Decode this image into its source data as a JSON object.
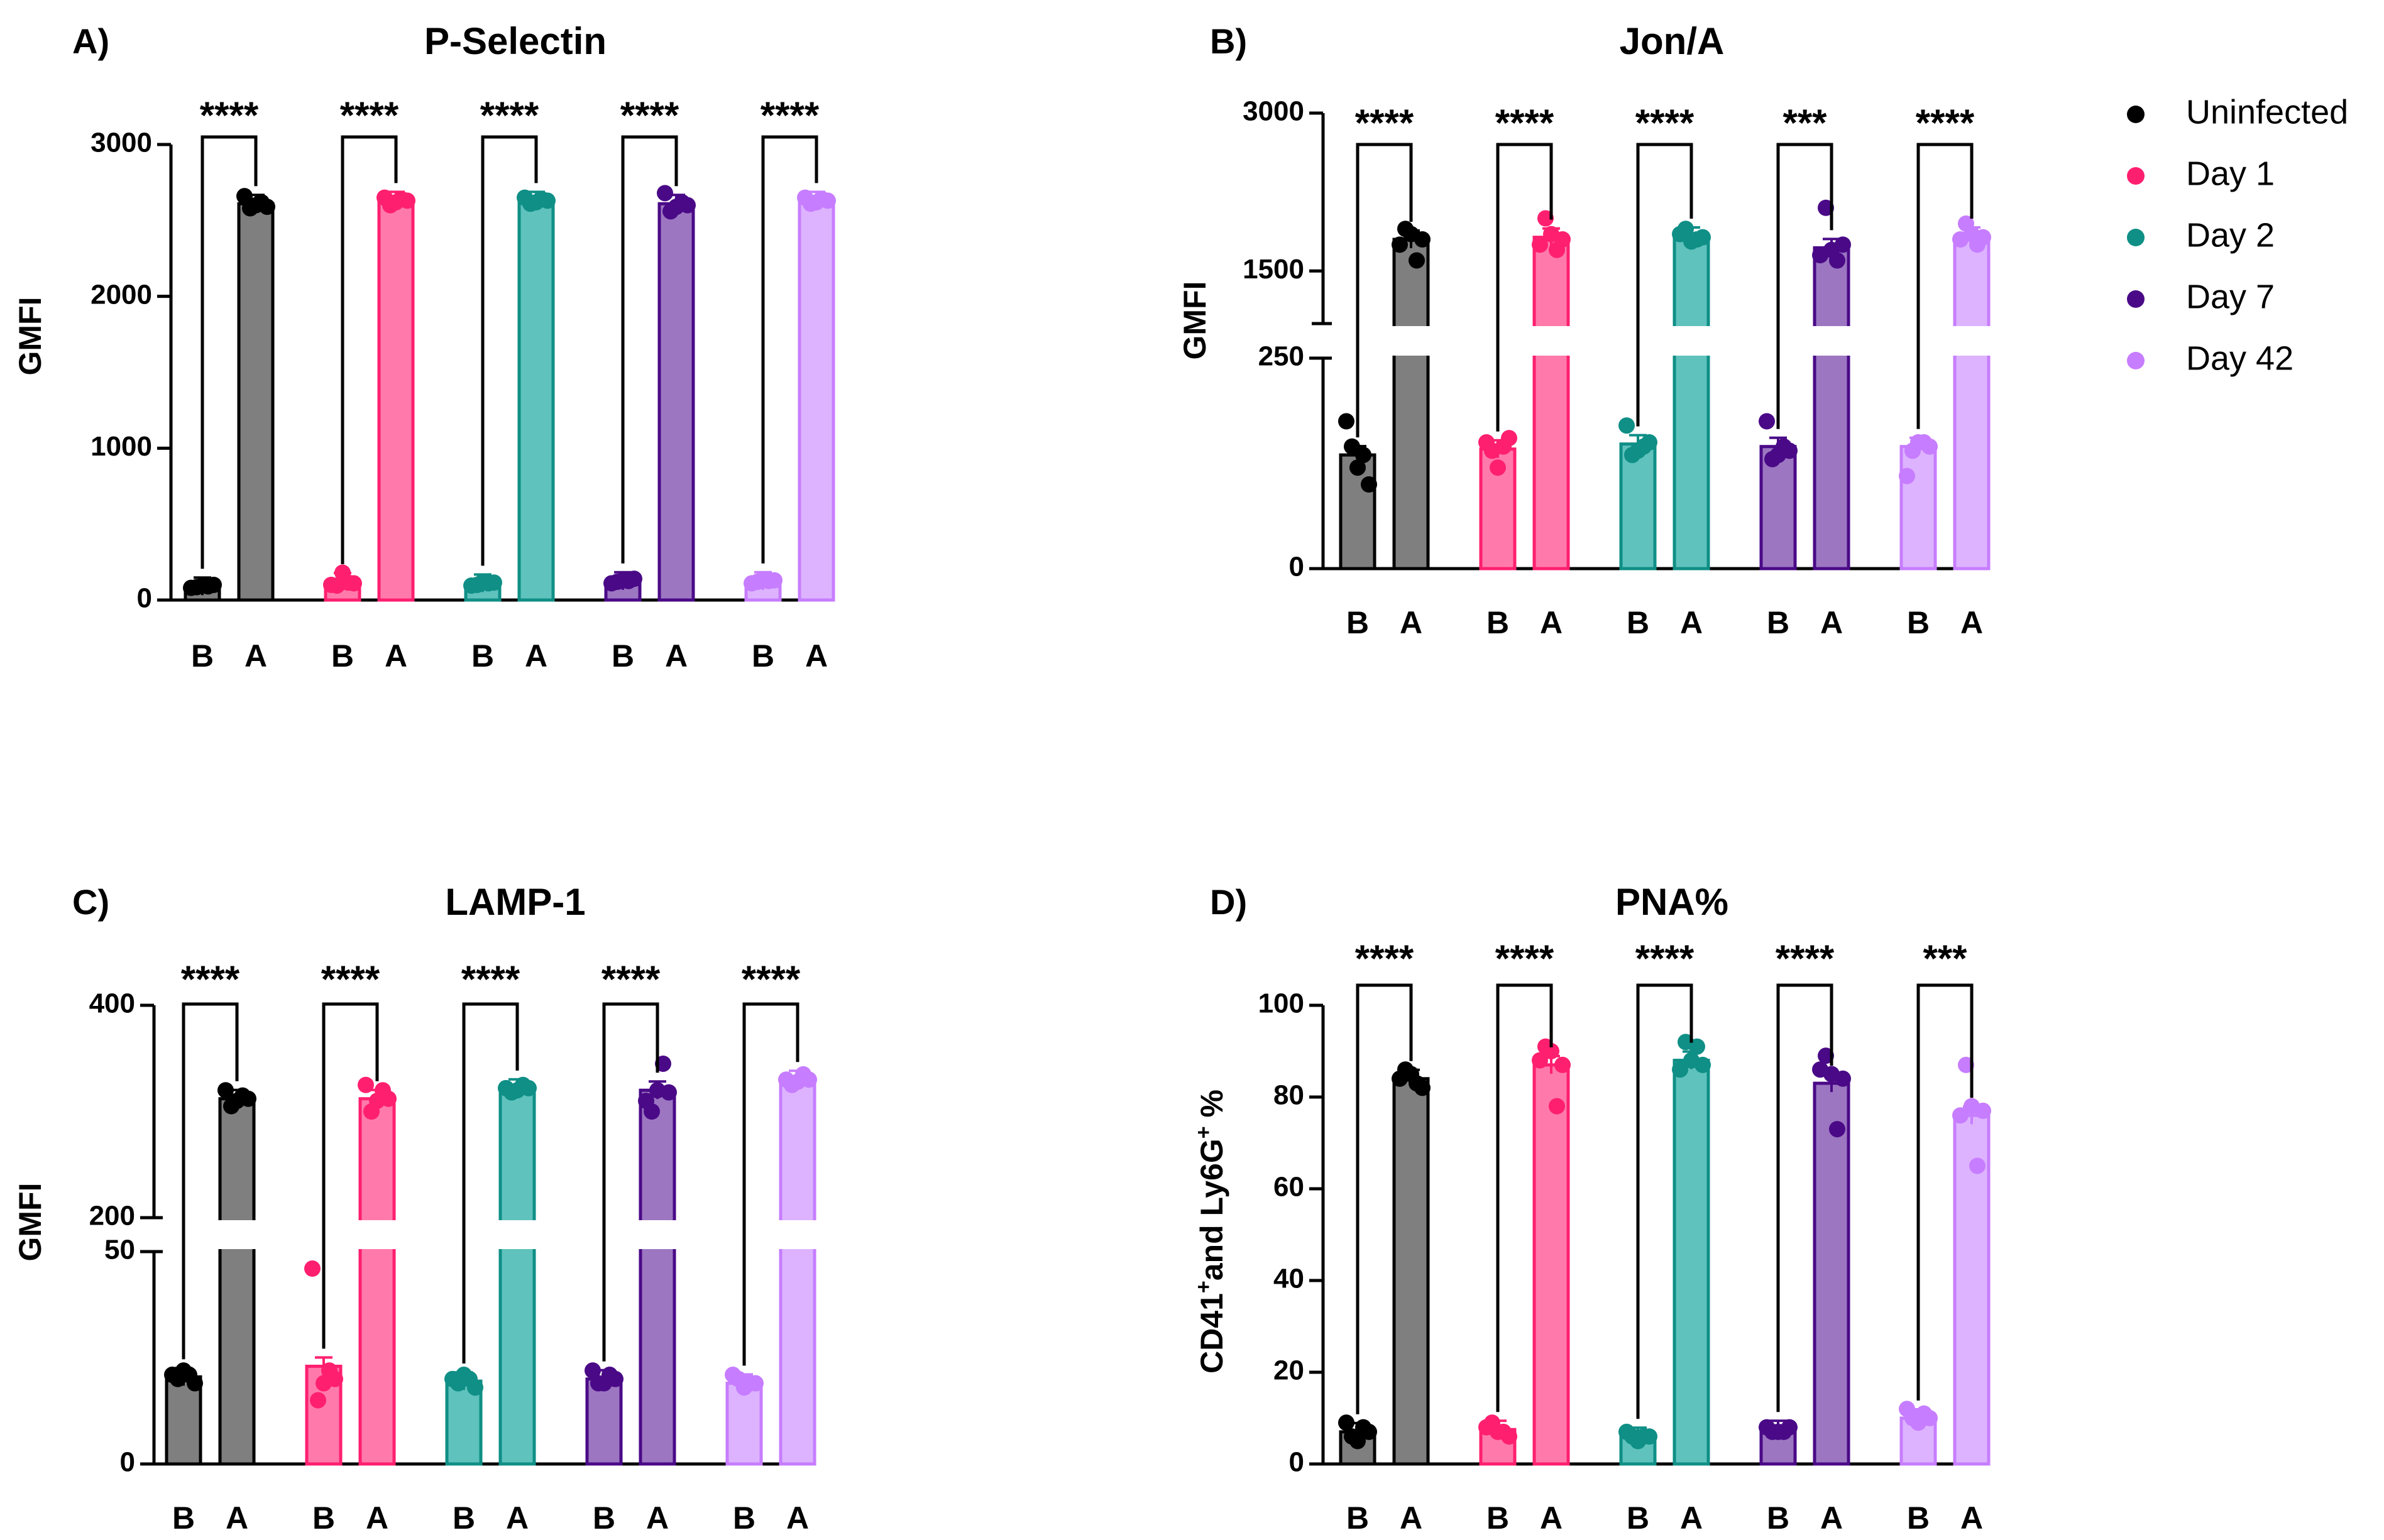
{
  "legend": [
    {
      "label": "Uninfected",
      "color": "#000000",
      "fill": "#7f7f7f"
    },
    {
      "label": "Day 1",
      "color": "#ff1f6f",
      "fill": "#ff7aaa"
    },
    {
      "label": "Day 2",
      "color": "#0f8f86",
      "fill": "#5fc2bc"
    },
    {
      "label": "Day 7",
      "color": "#4a0a87",
      "fill": "#9d76c2"
    },
    {
      "label": "Day 42",
      "color": "#c77dff",
      "fill": "#ddb3ff"
    }
  ],
  "chart_data": [
    {
      "type": "bar",
      "panel": "A)",
      "title": "P-Selectin",
      "ylabel": "GMFI",
      "ylim": [
        0,
        3000
      ],
      "yticks": [
        "0",
        "1000",
        "2000",
        "3000"
      ],
      "categories": [
        "B",
        "A"
      ],
      "series": [
        {
          "name": "Uninfected",
          "values": [
            90,
            2610
          ],
          "points": [
            [
              80,
              95,
              100,
              85,
              90
            ],
            [
              2580,
              2620,
              2660,
              2600,
              2590
            ]
          ]
        },
        {
          "name": "Day 1",
          "values": [
            120,
            2630
          ],
          "points": [
            [
              100,
              180,
              110,
              95,
              115
            ],
            [
              2600,
              2640,
              2650,
              2620,
              2630
            ]
          ]
        },
        {
          "name": "Day 2",
          "values": [
            110,
            2630
          ],
          "points": [
            [
              95,
              120,
              115,
              100,
              110
            ],
            [
              2610,
              2640,
              2650,
              2620,
              2630
            ]
          ]
        },
        {
          "name": "Day 7",
          "values": [
            125,
            2610
          ],
          "points": [
            [
              110,
              130,
              140,
              120,
              125
            ],
            [
              2560,
              2620,
              2680,
              2590,
              2600
            ]
          ]
        },
        {
          "name": "Day 42",
          "values": [
            125,
            2630
          ],
          "points": [
            [
              110,
              135,
              130,
              120,
              125
            ],
            [
              2610,
              2640,
              2650,
              2620,
              2630
            ]
          ]
        }
      ],
      "significance": [
        "****",
        "****",
        "****",
        "****",
        "****"
      ]
    },
    {
      "type": "bar",
      "panel": "B)",
      "title": "Jon/A",
      "ylabel": "GMFI",
      "broken_axis": true,
      "lower_ylim": [
        0,
        250
      ],
      "upper_ylim": [
        1000,
        3000
      ],
      "yticks": [
        "0",
        "250",
        "1500",
        "3000"
      ],
      "categories": [
        "B",
        "A"
      ],
      "series": [
        {
          "name": "Uninfected",
          "values": [
            135,
            1800
          ],
          "points": [
            [
              175,
              120,
              100,
              145,
              135
            ],
            [
              1900,
              1600,
              1750,
              1850,
              1800
            ]
          ]
        },
        {
          "name": "Day 1",
          "values": [
            142,
            1820
          ],
          "points": [
            [
              150,
              120,
              155,
              140,
              145
            ],
            [
              2000,
              1700,
              1750,
              1850,
              1800
            ]
          ]
        },
        {
          "name": "Day 2",
          "values": [
            148,
            1830
          ],
          "points": [
            [
              170,
              140,
              150,
              135,
              145
            ],
            [
              1900,
              1800,
              1850,
              1780,
              1820
            ]
          ]
        },
        {
          "name": "Day 7",
          "values": [
            145,
            1720
          ],
          "points": [
            [
              175,
              135,
              140,
              130,
              145
            ],
            [
              2100,
              1600,
              1650,
              1700,
              1750
            ]
          ]
        },
        {
          "name": "Day 42",
          "values": [
            145,
            1830
          ],
          "points": [
            [
              110,
              150,
              145,
              140,
              150
            ],
            [
              1950,
              1750,
              1800,
              1850,
              1820
            ]
          ]
        }
      ],
      "significance": [
        "****",
        "****",
        "****",
        "***",
        "****"
      ]
    },
    {
      "type": "bar",
      "panel": "C)",
      "title": "LAMP-1",
      "ylabel": "GMFI",
      "broken_axis": true,
      "lower_ylim": [
        0,
        50
      ],
      "upper_ylim": [
        200,
        400
      ],
      "yticks": [
        "0",
        "50",
        "200",
        "400"
      ],
      "categories": [
        "B",
        "A"
      ],
      "series": [
        {
          "name": "Uninfected",
          "values": [
            20.5,
            312
          ],
          "points": [
            [
              21,
              22,
              19,
              20,
              21
            ],
            [
              305,
              315,
              320,
              310,
              312
            ]
          ]
        },
        {
          "name": "Day 1",
          "values": [
            23,
            312
          ],
          "points": [
            [
              46,
              19,
              20,
              15,
              22
            ],
            [
              300,
              320,
              325,
              310,
              312
            ]
          ]
        },
        {
          "name": "Day 2",
          "values": [
            19.5,
            322
          ],
          "points": [
            [
              20,
              21,
              18,
              19,
              20
            ],
            [
              318,
              325,
              322,
              320,
              322
            ]
          ]
        },
        {
          "name": "Day 7",
          "values": [
            20,
            320
          ],
          "points": [
            [
              22,
              19,
              20,
              19,
              21
            ],
            [
              300,
              345,
              310,
              320,
              318
            ]
          ]
        },
        {
          "name": "Day 42",
          "values": [
            19,
            330
          ],
          "points": [
            [
              21,
              18,
              19,
              20,
              19
            ],
            [
              325,
              335,
              330,
              328,
              330
            ]
          ]
        }
      ],
      "significance": [
        "****",
        "****",
        "****",
        "****",
        "****"
      ]
    },
    {
      "type": "bar",
      "panel": "D)",
      "title": "PNA%",
      "ylabel": "CD41⁺ and Ly6G⁺ %",
      "ylim": [
        0,
        100
      ],
      "yticks": [
        "0",
        "20",
        "40",
        "60",
        "80",
        "100"
      ],
      "categories": [
        "B",
        "A"
      ],
      "series": [
        {
          "name": "Uninfected",
          "values": [
            7,
            84
          ],
          "points": [
            [
              9,
              5,
              7,
              6,
              8
            ],
            [
              86,
              83,
              84,
              85,
              82
            ]
          ]
        },
        {
          "name": "Day 1",
          "values": [
            7.5,
            87
          ],
          "points": [
            [
              8,
              7,
              6,
              9,
              7
            ],
            [
              91,
              78,
              88,
              90,
              87
            ]
          ]
        },
        {
          "name": "Day 2",
          "values": [
            6,
            88
          ],
          "points": [
            [
              7,
              5,
              6,
              6,
              6
            ],
            [
              92,
              91,
              86,
              88,
              87
            ]
          ]
        },
        {
          "name": "Day 7",
          "values": [
            7.5,
            83
          ],
          "points": [
            [
              8,
              7,
              8,
              7,
              7
            ],
            [
              89,
              73,
              86,
              85,
              84
            ]
          ]
        },
        {
          "name": "Day 42",
          "values": [
            10,
            76
          ],
          "points": [
            [
              12,
              9,
              10,
              10,
              11
            ],
            [
              87,
              65,
              76,
              78,
              77
            ]
          ]
        }
      ],
      "significance": [
        "****",
        "****",
        "****",
        "****",
        "***"
      ]
    }
  ]
}
